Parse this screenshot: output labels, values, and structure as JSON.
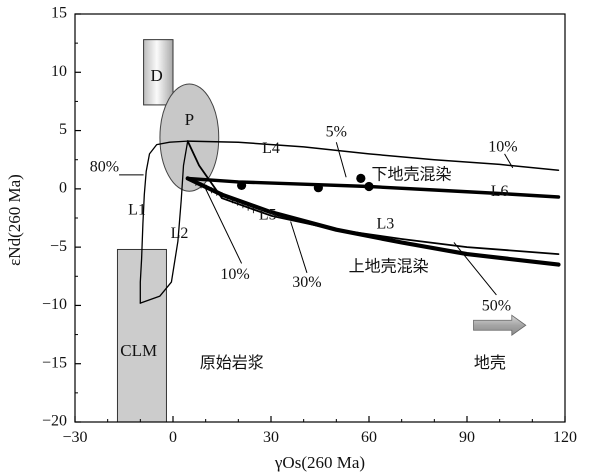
{
  "chart_data": {
    "type": "line",
    "xlabel": "γOs(260 Ma)",
    "ylabel": "εNd(260 Ma)",
    "xlim": [
      -30,
      120
    ],
    "ylim": [
      -20,
      15
    ],
    "x_ticks": [
      "−30",
      "0",
      "30",
      "60",
      "90",
      "120"
    ],
    "y_ticks": [
      "15",
      "10",
      "5",
      "0",
      "−5",
      "−10",
      "−15",
      "−20"
    ],
    "regions": [
      {
        "label": "D",
        "x": [
          -9,
          0
        ],
        "y": [
          7.2,
          12.8
        ],
        "fill": "gradient-gray"
      },
      {
        "label": "P",
        "shape": "ellipse",
        "center": [
          5,
          4.4
        ],
        "rx": 9,
        "ry": 4.6,
        "fill": "#c8c8c8"
      },
      {
        "label": "CLM",
        "x": [
          -17,
          -2
        ],
        "y": [
          -20,
          -5.2
        ],
        "fill": "#cccccc"
      }
    ],
    "series": [
      {
        "name": "L1",
        "points": [
          [
            -10,
            -9.8
          ],
          [
            -10,
            -8
          ],
          [
            -9.6,
            -6
          ],
          [
            -9.2,
            -3
          ],
          [
            -8.8,
            -0.5
          ],
          [
            -8.2,
            1.5
          ],
          [
            -7.2,
            3
          ],
          [
            -5,
            3.8
          ],
          [
            -1,
            4
          ],
          [
            4.5,
            4.1
          ]
        ]
      },
      {
        "name": "L2",
        "points": [
          [
            -10,
            -9.8
          ],
          [
            -4,
            -9.2
          ],
          [
            -0.5,
            -8
          ],
          [
            1.5,
            -4.5
          ],
          [
            2.5,
            -1
          ],
          [
            3.2,
            2
          ],
          [
            4.5,
            4.1
          ]
        ]
      },
      {
        "name": "L4",
        "points": [
          [
            4.5,
            4.1
          ],
          [
            20,
            4
          ],
          [
            40,
            3.6
          ],
          [
            60,
            3
          ],
          [
            80,
            2.5
          ],
          [
            100,
            2.1
          ],
          [
            118,
            1.6
          ]
        ]
      },
      {
        "name": "L6",
        "points": [
          [
            4.5,
            0.9
          ],
          [
            20,
            0.6
          ],
          [
            40,
            0.4
          ],
          [
            60,
            0.2
          ],
          [
            80,
            -0.1
          ],
          [
            100,
            -0.4
          ],
          [
            118,
            -0.7
          ]
        ]
      },
      {
        "name": "L5",
        "points": [
          [
            4.5,
            0.9
          ],
          [
            15,
            -0.5
          ],
          [
            30,
            -2
          ],
          [
            50,
            -3.5
          ],
          [
            70,
            -4.6
          ],
          [
            90,
            -5.6
          ],
          [
            118,
            -6.5
          ]
        ]
      },
      {
        "name": "L3",
        "points": [
          [
            4.5,
            4.1
          ],
          [
            8,
            2
          ],
          [
            15,
            -0.8
          ],
          [
            30,
            -2.3
          ],
          [
            50,
            -3.5
          ],
          [
            70,
            -4.3
          ],
          [
            90,
            -5
          ],
          [
            118,
            -5.6
          ]
        ]
      }
    ],
    "points": [
      [
        21,
        0.3
      ],
      [
        44.5,
        0.1
      ],
      [
        57.5,
        0.9
      ],
      [
        60,
        0.2
      ]
    ],
    "labels": [
      {
        "text": "D",
        "x": -5,
        "y": 9.6
      },
      {
        "text": "P",
        "x": 5,
        "y": 5.8
      },
      {
        "text": "CLM",
        "x": -10.5,
        "y": -14
      },
      {
        "text": "L1",
        "x": -11,
        "y": -1.9
      },
      {
        "text": "L2",
        "x": 2,
        "y": -3.9
      },
      {
        "text": "L3",
        "x": 65,
        "y": -3.1
      },
      {
        "text": "L4",
        "x": 30,
        "y": 3.4
      },
      {
        "text": "L5",
        "x": 29,
        "y": -2.3
      },
      {
        "text": "L6",
        "x": 100,
        "y": -0.3
      },
      {
        "text": "80%",
        "x": -21,
        "y": 1.8
      },
      {
        "text": "5%",
        "x": 50,
        "y": 4.8
      },
      {
        "text": "10%",
        "x": 101,
        "y": 3.5
      },
      {
        "text": "10%",
        "x": 19,
        "y": -7.4
      },
      {
        "text": "30%",
        "x": 41,
        "y": -8.1
      },
      {
        "text": "50%",
        "x": 99,
        "y": -10.1
      },
      {
        "text": "下地壳混染",
        "x": 73,
        "y": 1.2
      },
      {
        "text": "上地壳混染",
        "x": 66,
        "y": -6.7
      },
      {
        "text": "原始岩浆",
        "x": 18,
        "y": -15
      },
      {
        "text": "地壳",
        "x": 97,
        "y": -15
      }
    ]
  }
}
